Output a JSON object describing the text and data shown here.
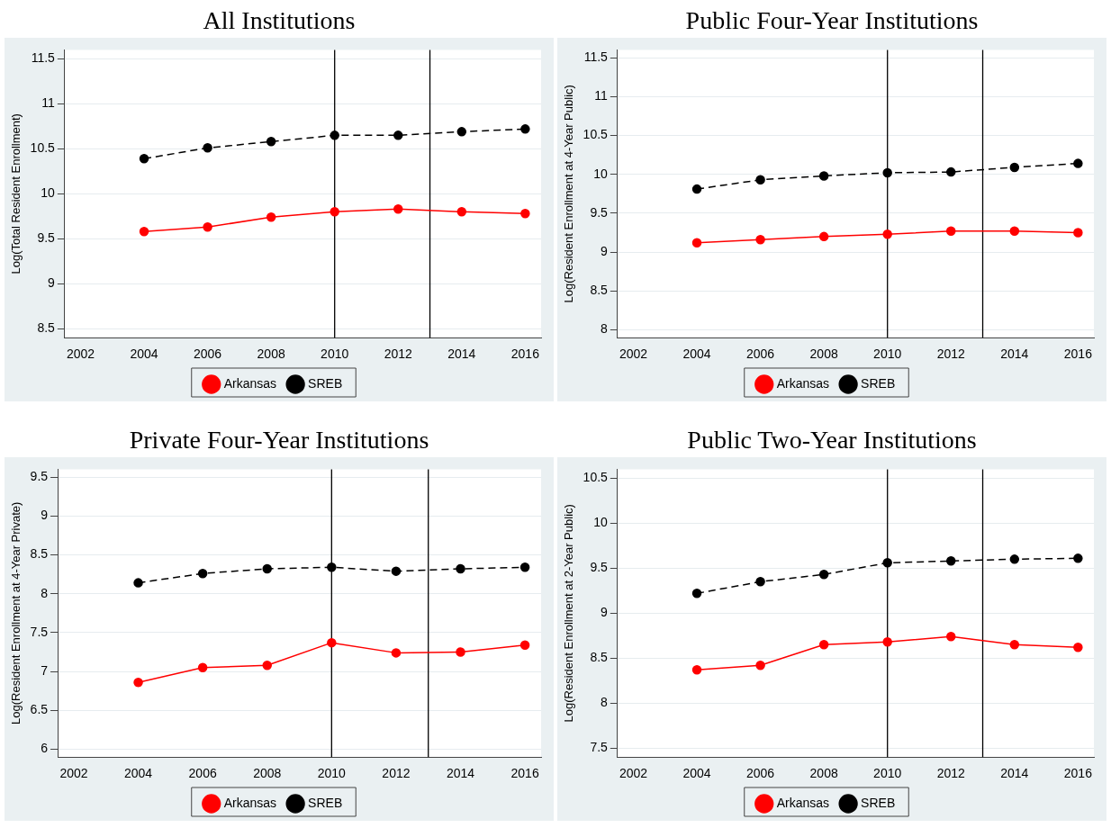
{
  "chart_data": [
    {
      "type": "line",
      "title": "All Institutions",
      "ylabel": "Log(Total Resident Enrollment)",
      "x": [
        2004,
        2006,
        2008,
        2010,
        2012,
        2014,
        2016
      ],
      "xlim": [
        2001.5,
        2016.5
      ],
      "xticks": [
        2002,
        2004,
        2006,
        2008,
        2010,
        2012,
        2014,
        2016
      ],
      "ylim": [
        8.4,
        11.6
      ],
      "yticks": [
        8.5,
        9,
        9.5,
        10,
        10.5,
        11,
        11.5
      ],
      "grid": "y",
      "legend": "bottom",
      "marker": "circle",
      "ref_lines": [
        {
          "axis": "x",
          "value": 2010,
          "color": "#000000"
        },
        {
          "axis": "x",
          "value": 2013,
          "color": "#000000"
        }
      ],
      "series": [
        {
          "name": "Arkansas",
          "color": "#ff0000",
          "line_style": "solid",
          "values": [
            9.58,
            9.63,
            9.74,
            9.8,
            9.83,
            9.8,
            9.78
          ]
        },
        {
          "name": "SREB",
          "color": "#000000",
          "line_style": "dashed",
          "values": [
            10.39,
            10.51,
            10.58,
            10.65,
            10.65,
            10.69,
            10.72
          ]
        }
      ]
    },
    {
      "type": "line",
      "title": "Public Four-Year Institutions",
      "ylabel": "Log(Resident Enrollment at 4-Year Public)",
      "x": [
        2004,
        2006,
        2008,
        2010,
        2012,
        2014,
        2016
      ],
      "xlim": [
        2001.5,
        2016.5
      ],
      "xticks": [
        2002,
        2004,
        2006,
        2008,
        2010,
        2012,
        2014,
        2016
      ],
      "ylim": [
        7.9,
        11.6
      ],
      "yticks": [
        8,
        8.5,
        9,
        9.5,
        10,
        10.5,
        11,
        11.5
      ],
      "grid": "y",
      "legend": "bottom",
      "marker": "circle",
      "ref_lines": [
        {
          "axis": "x",
          "value": 2010,
          "color": "#000000"
        },
        {
          "axis": "x",
          "value": 2013,
          "color": "#000000"
        }
      ],
      "series": [
        {
          "name": "Arkansas",
          "color": "#ff0000",
          "line_style": "solid",
          "values": [
            9.12,
            9.16,
            9.2,
            9.23,
            9.27,
            9.27,
            9.25
          ]
        },
        {
          "name": "SREB",
          "color": "#000000",
          "line_style": "dashed",
          "values": [
            9.81,
            9.93,
            9.98,
            10.02,
            10.03,
            10.09,
            10.14
          ]
        }
      ]
    },
    {
      "type": "line",
      "title": "Private Four-Year Institutions",
      "ylabel": "Log(Resident Enrollment at 4-Year Private)",
      "x": [
        2004,
        2006,
        2008,
        2010,
        2012,
        2014,
        2016
      ],
      "xlim": [
        2001.5,
        2016.5
      ],
      "xticks": [
        2002,
        2004,
        2006,
        2008,
        2010,
        2012,
        2014,
        2016
      ],
      "ylim": [
        5.9,
        9.6
      ],
      "yticks": [
        6,
        6.5,
        7,
        7.5,
        8,
        8.5,
        9,
        9.5
      ],
      "grid": "y",
      "legend": "bottom",
      "marker": "circle",
      "ref_lines": [
        {
          "axis": "x",
          "value": 2010,
          "color": "#000000"
        },
        {
          "axis": "x",
          "value": 2013,
          "color": "#000000"
        }
      ],
      "series": [
        {
          "name": "Arkansas",
          "color": "#ff0000",
          "line_style": "solid",
          "values": [
            6.86,
            7.05,
            7.08,
            7.37,
            7.24,
            7.25,
            7.34
          ]
        },
        {
          "name": "SREB",
          "color": "#000000",
          "line_style": "dashed",
          "values": [
            8.14,
            8.26,
            8.32,
            8.34,
            8.29,
            8.32,
            8.34
          ]
        }
      ]
    },
    {
      "type": "line",
      "title": "Public Two-Year Institutions",
      "ylabel": "Log(Resident Enrollment at 2-Year Public)",
      "x": [
        2004,
        2006,
        2008,
        2010,
        2012,
        2014,
        2016
      ],
      "xlim": [
        2001.5,
        2016.5
      ],
      "xticks": [
        2002,
        2004,
        2006,
        2008,
        2010,
        2012,
        2014,
        2016
      ],
      "ylim": [
        7.4,
        10.6
      ],
      "yticks": [
        7.5,
        8,
        8.5,
        9,
        9.5,
        10,
        10.5
      ],
      "grid": "y",
      "legend": "bottom",
      "marker": "circle",
      "ref_lines": [
        {
          "axis": "x",
          "value": 2010,
          "color": "#000000"
        },
        {
          "axis": "x",
          "value": 2013,
          "color": "#000000"
        }
      ],
      "series": [
        {
          "name": "Arkansas",
          "color": "#ff0000",
          "line_style": "solid",
          "values": [
            8.37,
            8.42,
            8.65,
            8.68,
            8.74,
            8.65,
            8.62
          ]
        },
        {
          "name": "SREB",
          "color": "#000000",
          "line_style": "dashed",
          "values": [
            9.22,
            9.35,
            9.43,
            9.56,
            9.58,
            9.6,
            9.61
          ]
        }
      ]
    }
  ]
}
